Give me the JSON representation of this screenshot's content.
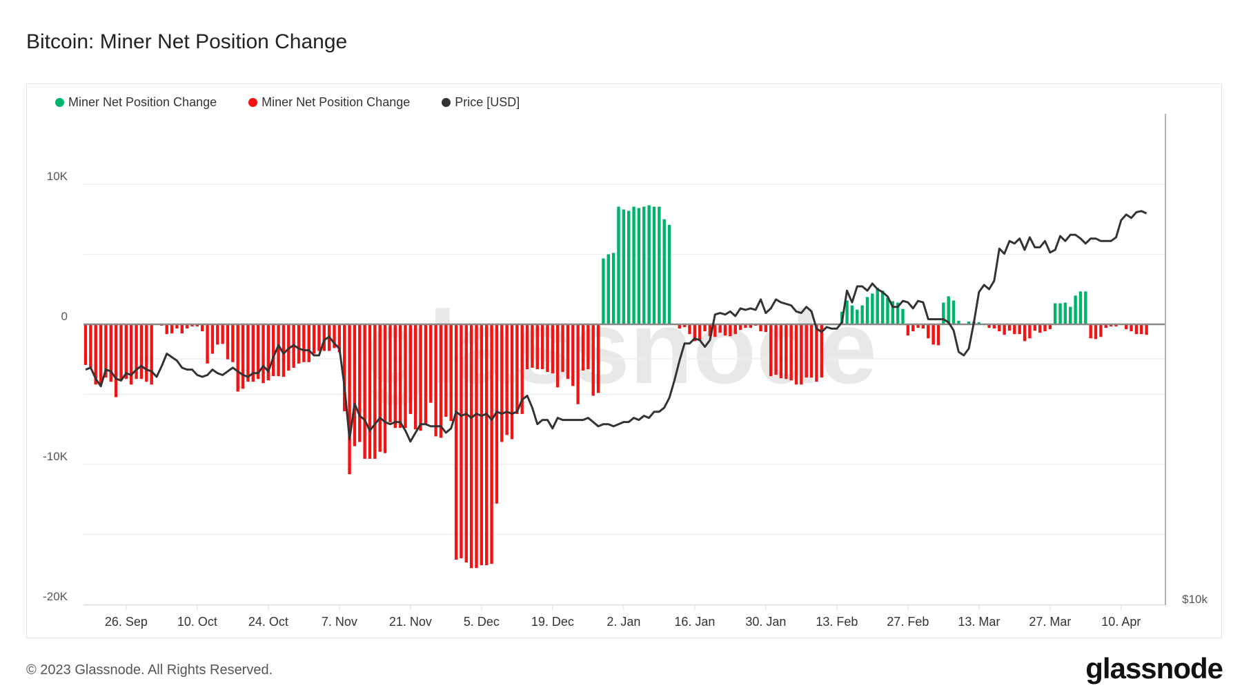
{
  "header": {
    "title": "Bitcoin: Miner Net Position Change"
  },
  "legend": [
    {
      "label": "Miner Net Position Change",
      "color": "#00b36b"
    },
    {
      "label": "Miner Net Position Change",
      "color": "#f01414"
    },
    {
      "label": "Price [USD]",
      "color": "#333333"
    }
  ],
  "footer": {
    "copyright": "© 2023 Glassnode. All Rights Reserved.",
    "logo": "glassnode"
  },
  "watermark": "glassnode",
  "chart_data": {
    "type": "bar",
    "title": "Bitcoin: Miner Net Position Change",
    "xlabel": "",
    "ylabel": "",
    "units": "BTC (thousands)",
    "ylim": [
      -20,
      12
    ],
    "y_ticks": [
      {
        "value": 10,
        "label": "10K"
      },
      {
        "value": 0,
        "label": "0"
      },
      {
        "value": -10,
        "label": "-10K"
      },
      {
        "value": -20,
        "label": "-20K"
      }
    ],
    "y_grid": [
      10,
      5,
      0,
      -5,
      -10,
      -15,
      -20
    ],
    "right_axis": {
      "scale": "log",
      "ticks": [
        {
          "value": 10000,
          "label": "$10k"
        }
      ]
    },
    "x_ticks": [
      {
        "day": 8,
        "label": "26. Sep"
      },
      {
        "day": 22,
        "label": "10. Oct"
      },
      {
        "day": 36,
        "label": "24. Oct"
      },
      {
        "day": 50,
        "label": "7. Nov"
      },
      {
        "day": 64,
        "label": "21. Nov"
      },
      {
        "day": 78,
        "label": "5. Dec"
      },
      {
        "day": 92,
        "label": "19. Dec"
      },
      {
        "day": 106,
        "label": "2. Jan"
      },
      {
        "day": 120,
        "label": "16. Jan"
      },
      {
        "day": 134,
        "label": "30. Jan"
      },
      {
        "day": 148,
        "label": "13. Feb"
      },
      {
        "day": 162,
        "label": "27. Feb"
      },
      {
        "day": 176,
        "label": "13. Mar"
      },
      {
        "day": 190,
        "label": "27. Mar"
      },
      {
        "day": 204,
        "label": "10. Apr"
      }
    ],
    "series": [
      {
        "name": "Miner Net Position Change",
        "positive_color": "#00b36b",
        "negative_color": "#f01414",
        "values": [
          -2.9,
          -3.2,
          -4.3,
          -4.3,
          -3.8,
          -4.1,
          -5.2,
          -4.0,
          -3.9,
          -4.3,
          -3.9,
          -3.9,
          -4.1,
          -4.3,
          0,
          -0.1,
          -0.7,
          -0.65,
          -0.3,
          -0.65,
          -0.3,
          -0.15,
          -0.15,
          -0.5,
          -2.8,
          -2.1,
          -1.45,
          -1.4,
          -2.5,
          -2.7,
          -4.8,
          -4.6,
          -4.1,
          -4.1,
          -3.9,
          -4.2,
          -4.0,
          -3.7,
          -3.7,
          -3.75,
          -3.3,
          -3.1,
          -2.8,
          -2.7,
          -2.7,
          -2.1,
          -1.9,
          -1.9,
          -1.9,
          -1.7,
          -2.0,
          -6.2,
          -10.7,
          -8.7,
          -8.4,
          -9.6,
          -9.6,
          -9.6,
          -9.1,
          -9.2,
          -7.0,
          -7.4,
          -7.4,
          -7.4,
          -6.4,
          -7.5,
          -7.6,
          -7.1,
          -5.6,
          -8.0,
          -8.1,
          -6.6,
          -6.9,
          -16.8,
          -16.7,
          -17.0,
          -17.4,
          -17.4,
          -17.2,
          -17.2,
          -17.1,
          -12.8,
          -8.4,
          -7.9,
          -8.2,
          -6.4,
          -6.4,
          -3.2,
          -3.1,
          -3.2,
          -3.2,
          -3.4,
          -3.5,
          -4.5,
          -3.4,
          -3.9,
          -4.4,
          -5.7,
          -3.3,
          -3.2,
          -5.1,
          -4.9,
          4.7,
          5.0,
          5.1,
          8.4,
          8.2,
          8.1,
          8.4,
          8.3,
          8.4,
          8.5,
          8.4,
          8.4,
          7.5,
          7.1,
          0.05,
          -0.3,
          -0.2,
          -0.7,
          -1.2,
          -1.1,
          -0.5,
          -0.85,
          -0.9,
          -0.6,
          -0.8,
          -0.85,
          -0.7,
          -0.4,
          -0.25,
          -0.25,
          -0.1,
          -0.5,
          -0.55,
          -3.7,
          -3.6,
          -3.85,
          -3.9,
          -4.0,
          -4.3,
          -4.3,
          -3.8,
          -3.8,
          -4.1,
          -3.8,
          0,
          0,
          0.05,
          0.9,
          1.7,
          1.35,
          1.05,
          1.35,
          1.95,
          2.2,
          2.6,
          2.4,
          1.9,
          1.65,
          1.55,
          1.1,
          -0.8,
          -0.5,
          -0.25,
          -0.3,
          -1.0,
          -1.45,
          -1.5,
          1.55,
          2.0,
          1.7,
          0.25,
          0,
          0.2,
          0.2,
          0.15,
          0.03,
          -0.25,
          -0.3,
          -0.5,
          -0.75,
          -0.45,
          -0.7,
          -0.7,
          -1.2,
          -1.0,
          -0.45,
          -0.6,
          -0.5,
          -0.35,
          1.5,
          1.5,
          1.55,
          1.25,
          2.05,
          2.35,
          2.35,
          -1.0,
          -1.05,
          -0.9,
          -0.25,
          -0.15,
          -0.15,
          0.05,
          -0.35,
          -0.5,
          -0.7,
          -0.7,
          -0.75
        ]
      },
      {
        "name": "Price [USD]",
        "color": "#333333",
        "units": "USD thousands",
        "values": [
          19.4,
          19.5,
          18.9,
          18.5,
          19.4,
          19.3,
          18.9,
          18.8,
          19.2,
          19.1,
          19.4,
          19.6,
          19.4,
          19.3,
          19.0,
          19.6,
          20.3,
          20.1,
          19.9,
          19.5,
          19.4,
          19.4,
          19.1,
          19.0,
          19.1,
          19.4,
          19.2,
          19.1,
          19.3,
          19.5,
          19.3,
          19.1,
          19.0,
          19.2,
          19.2,
          19.6,
          19.3,
          20.1,
          20.8,
          20.3,
          20.6,
          20.8,
          20.6,
          20.5,
          20.5,
          20.2,
          20.2,
          21.1,
          21.3,
          20.9,
          20.6,
          18.5,
          15.9,
          17.6,
          17.0,
          16.8,
          16.3,
          16.6,
          16.9,
          16.7,
          16.6,
          16.7,
          16.7,
          16.3,
          15.8,
          16.2,
          16.6,
          16.6,
          16.5,
          16.5,
          16.5,
          16.2,
          16.4,
          17.2,
          17.0,
          17.1,
          16.9,
          17.1,
          17.0,
          17.1,
          16.8,
          17.2,
          17.1,
          17.2,
          17.1,
          17.2,
          17.8,
          18.0,
          17.4,
          16.6,
          16.8,
          16.8,
          16.4,
          16.9,
          16.8,
          16.8,
          16.8,
          16.8,
          16.8,
          16.9,
          16.7,
          16.5,
          16.6,
          16.6,
          16.5,
          16.6,
          16.7,
          16.7,
          16.9,
          16.8,
          17.0,
          16.9,
          17.2,
          17.2,
          17.4,
          17.9,
          18.8,
          19.9,
          20.9,
          20.9,
          21.2,
          21.1,
          20.7,
          21.1,
          22.7,
          22.8,
          22.7,
          22.9,
          22.6,
          23.1,
          23.0,
          23.1,
          23.0,
          23.7,
          22.8,
          23.1,
          23.7,
          23.5,
          23.4,
          23.3,
          22.9,
          22.8,
          23.2,
          22.9,
          21.8,
          21.6,
          21.9,
          21.8,
          21.8,
          22.2,
          24.3,
          23.5,
          24.6,
          24.6,
          24.3,
          24.8,
          24.4,
          24.2,
          23.9,
          23.2,
          23.2,
          23.6,
          23.5,
          23.1,
          23.6,
          23.5,
          22.4,
          22.4,
          22.4,
          22.4,
          22.2,
          21.7,
          20.4,
          20.2,
          20.6,
          22.2,
          24.2,
          24.7,
          24.4,
          25.0,
          27.4,
          27.0,
          28.0,
          27.8,
          28.2,
          27.3,
          28.3,
          27.5,
          27.5,
          28.0,
          27.1,
          27.3,
          28.4,
          28.0,
          28.5,
          28.5,
          28.2,
          27.8,
          28.2,
          28.2,
          28.0,
          28.0,
          28.0,
          28.3,
          29.7,
          30.2,
          29.9,
          30.4,
          30.5,
          30.3
        ]
      }
    ]
  }
}
